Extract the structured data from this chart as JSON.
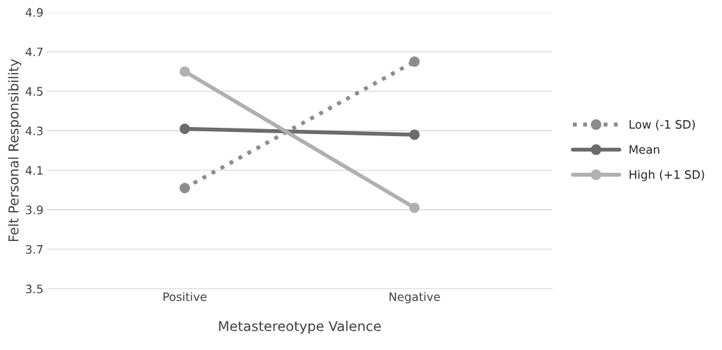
{
  "chart_data": {
    "type": "line",
    "xlabel": "Metastereotype Valence",
    "ylabel": "Felt Personal Responsibility",
    "categories": [
      "Positive",
      "Negative"
    ],
    "series": [
      {
        "name": "Low (-1 SD)",
        "color": "#8c8c8c",
        "values": [
          4.01,
          4.65
        ],
        "line_style": "dotted"
      },
      {
        "name": "Mean",
        "color": "#6b6b6b",
        "values": [
          4.31,
          4.28
        ],
        "line_style": "solid"
      },
      {
        "name": "High (+1 SD)",
        "color": "#b0b0b0",
        "values": [
          4.6,
          3.91
        ],
        "line_style": "solid"
      }
    ],
    "ylim": [
      3.5,
      4.9
    ],
    "yticks": [
      {
        "value": 3.5,
        "label": "3.5"
      },
      {
        "value": 3.7,
        "label": "3.7"
      },
      {
        "value": 3.9,
        "label": "3.9"
      },
      {
        "value": 4.1,
        "label": "4.1"
      },
      {
        "value": 4.3,
        "label": "4.3"
      },
      {
        "value": 4.5,
        "label": "4.5"
      },
      {
        "value": 4.7,
        "label": "4.7"
      },
      {
        "value": 4.9,
        "label": "4.9"
      }
    ],
    "grid": "y",
    "legend": "right",
    "marker": "circle"
  }
}
